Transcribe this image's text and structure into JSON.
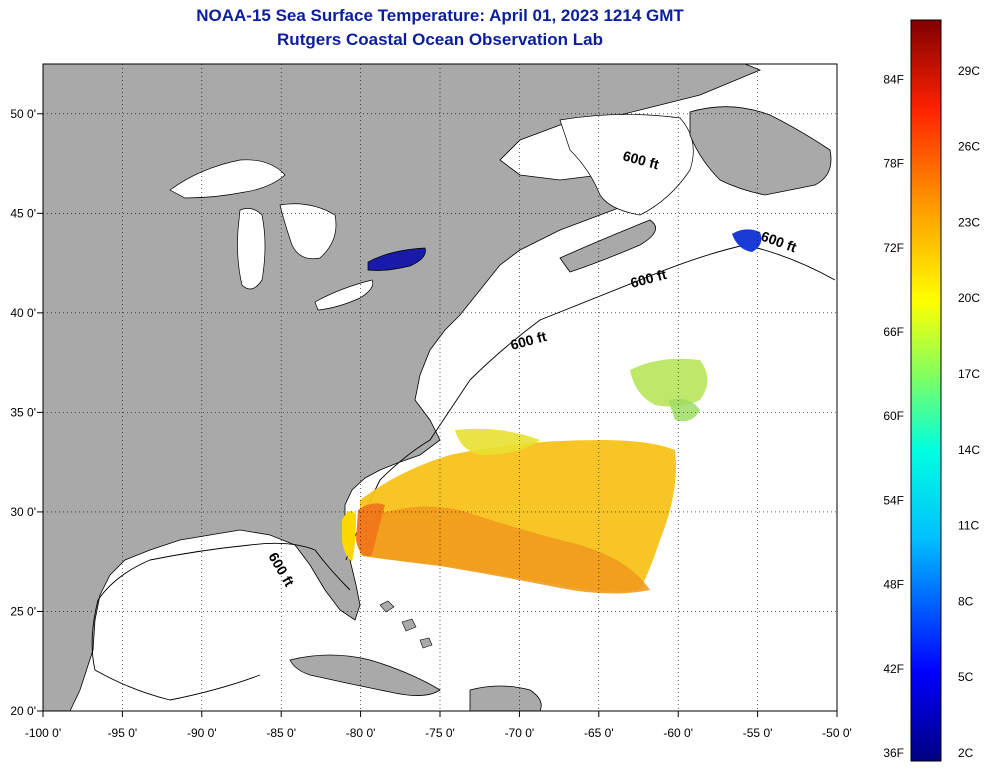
{
  "title": "NOAA-15 Sea Surface Temperature:  April 01, 2023 1214 GMT",
  "subtitle": "Rutgers Coastal Ocean Observation Lab",
  "map": {
    "lon_range": [
      -100,
      -50
    ],
    "lat_range": [
      20,
      52.5
    ],
    "lon_ticks": [
      "-100 0'",
      "-95 0'",
      "-90 0'",
      "-85 0'",
      "-80 0'",
      "-75 0'",
      "-70 0'",
      "-65 0'",
      "-60 0'",
      "-55 0'",
      "-50 0'"
    ],
    "lat_ticks": [
      "20 0'",
      "25 0'",
      "30 0'",
      "35 0'",
      "40 0'",
      "45 0'",
      "50 0'"
    ],
    "contour_label": "600 ft",
    "land_color": "#a9a9a9",
    "water_color": "#ffffff"
  },
  "colorbar": {
    "fahrenheit_labels": [
      "36F",
      "42F",
      "48F",
      "54F",
      "60F",
      "66F",
      "72F",
      "78F",
      "84F"
    ],
    "celsius_labels": [
      "2C",
      "5C",
      "8C",
      "11C",
      "14C",
      "17C",
      "20C",
      "23C",
      "26C",
      "29C"
    ]
  }
}
